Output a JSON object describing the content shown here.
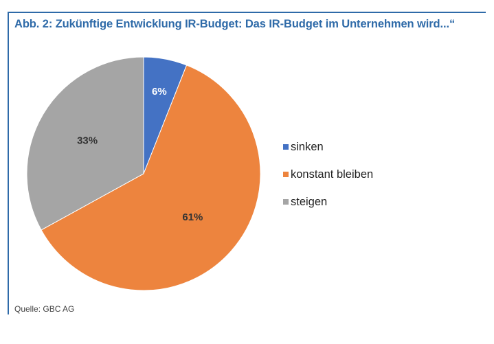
{
  "figure": {
    "title_prefix": "Abb. 2:",
    "title_text": " Zukünftige Entwicklung IR-Budget: Das IR-Budget im Unternehmen wird...“",
    "source": "Quelle: GBC AG"
  },
  "colors": {
    "accent": "#2e6aa8",
    "sinken": "#4472c4",
    "konstant": "#ed843e",
    "steigen": "#a5a5a5"
  },
  "chart_data": {
    "type": "pie",
    "title": "Abb. 2: Zukünftige Entwicklung IR-Budget: Das IR-Budget im Unternehmen wird...“",
    "categories": [
      "sinken",
      "konstant bleiben",
      "steigen"
    ],
    "values": [
      6,
      61,
      33
    ],
    "data_labels": [
      "6%",
      "61%",
      "33%"
    ],
    "unit": "%",
    "start_angle": "12 o'clock, clockwise",
    "legend_position": "right"
  }
}
